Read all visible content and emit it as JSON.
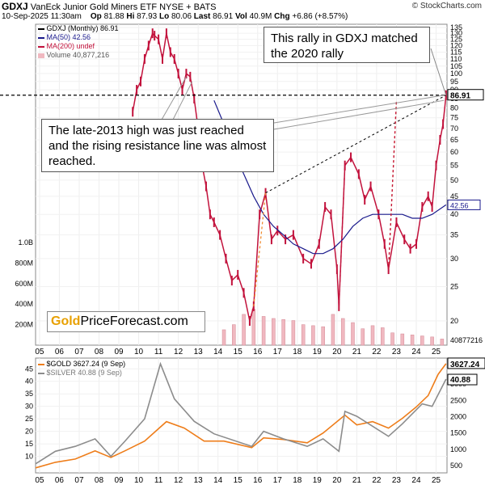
{
  "header": {
    "ticker": "GDXJ",
    "name": "VanEck Junior Gold Miners ETF",
    "exchange": "NYSE + BATS",
    "date": "10-Sep-2025 11:30am",
    "op_label": "Op",
    "op": "81.88",
    "hi_label": "Hi",
    "hi": "87.93",
    "lo_label": "Lo",
    "lo": "80.06",
    "last_label": "Last",
    "last": "86.91",
    "vol_label": "Vol",
    "vol": "40.9M",
    "chg_label": "Chg",
    "chg": "+6.86 (+8.57%)",
    "brand": "© StockCharts.com"
  },
  "legend_top": {
    "main": "GDXJ (Monthly) 86.91",
    "ma50": "MA(50) 42.56",
    "ma200": "MA(200) undef",
    "volume": "Volume 40,877,216"
  },
  "legend_bottom": {
    "gold": "$GOLD 3627.24 (9 Sep)",
    "silver": "$SILVER 40.88 (9 Sep)"
  },
  "annotations": {
    "top": "This rally in GDXJ matched the 2020 rally",
    "mid": "The late-2013 high was just reached and the rising resistance line was almost reached."
  },
  "logo": {
    "gold": "Gold",
    "rest": "PriceForecast.com"
  },
  "colors": {
    "price": "#c2123c",
    "ma50": "#1a1a8c",
    "volume": "#f0b8c0",
    "gold": "#ee7d1a",
    "silver": "#8c8c8c",
    "dashed": "#000000",
    "orange_dash": "#f08a30"
  },
  "chart_data": [
    {
      "type": "line",
      "title": "GDXJ (Monthly)",
      "x_range": [
        2005,
        2025.75
      ],
      "y_scale": "log",
      "ylim": [
        15,
        135
      ],
      "right_ticks": [
        "135",
        "130",
        "125",
        "120",
        "115",
        "110",
        "105",
        "100",
        "95",
        "90",
        "85",
        "80",
        "75",
        "70",
        "65",
        "60",
        "55",
        "50",
        "45",
        "40",
        "35",
        "30",
        "25",
        "20"
      ],
      "left_volume_ticks": [
        "1.0B",
        "800M",
        "600M",
        "400M",
        "200M"
      ],
      "x_tick_labels": [
        "05",
        "06",
        "07",
        "08",
        "09",
        "10",
        "11",
        "12",
        "13",
        "14",
        "15",
        "16",
        "17",
        "18",
        "19",
        "20",
        "21",
        "22",
        "23",
        "24",
        "25"
      ],
      "last_value_label": "86.91",
      "ma50_label": "42.56",
      "volume_value_label": "40877216",
      "price_series": {
        "name": "GDXJ",
        "x": [
          2009.9,
          2010.1,
          2010.3,
          2010.5,
          2010.7,
          2010.9,
          2011.0,
          2011.2,
          2011.4,
          2011.6,
          2011.8,
          2012.0,
          2012.2,
          2012.4,
          2012.6,
          2012.8,
          2013.0,
          2013.2,
          2013.4,
          2013.6,
          2013.8,
          2014.0,
          2014.3,
          2014.6,
          2014.9,
          2015.2,
          2015.5,
          2015.8,
          2016.0,
          2016.3,
          2016.6,
          2016.9,
          2017.2,
          2017.6,
          2018.0,
          2018.5,
          2018.9,
          2019.3,
          2019.6,
          2019.9,
          2020.2,
          2020.3,
          2020.6,
          2020.9,
          2021.3,
          2021.6,
          2021.9,
          2022.3,
          2022.6,
          2022.8,
          2023.2,
          2023.6,
          2023.9,
          2024.2,
          2024.5,
          2024.8,
          2025.0,
          2025.2,
          2025.4,
          2025.55,
          2025.7
        ],
        "values": [
          78,
          90,
          95,
          110,
          120,
          130,
          128,
          125,
          110,
          130,
          115,
          110,
          100,
          90,
          100,
          98,
          85,
          70,
          55,
          48,
          40,
          38,
          35,
          30,
          26,
          27,
          24,
          20,
          22,
          40,
          46,
          34,
          36,
          34,
          35,
          30,
          29,
          33,
          42,
          40,
          28,
          22,
          55,
          58,
          52,
          44,
          48,
          40,
          33,
          28,
          38,
          34,
          32,
          33,
          42,
          45,
          42,
          55,
          65,
          72,
          86.91
        ]
      },
      "ma50_series": {
        "name": "MA(50)",
        "x": [
          2014.0,
          2014.5,
          2015.0,
          2015.5,
          2016.0,
          2016.5,
          2017.0,
          2017.5,
          2018.0,
          2018.5,
          2019.0,
          2019.5,
          2020.0,
          2020.5,
          2021.0,
          2021.5,
          2022.0,
          2022.5,
          2023.0,
          2023.5,
          2024.0,
          2024.5,
          2025.0,
          2025.7
        ],
        "values": [
          84,
          72,
          60,
          52,
          45,
          40,
          37,
          35,
          33,
          32,
          31,
          31,
          32,
          34,
          37,
          39,
          40,
          40,
          40,
          40,
          39,
          39,
          40,
          42.56
        ]
      },
      "volume_series": {
        "name": "Volume",
        "x": [
          2014.5,
          2015.0,
          2015.5,
          2016.0,
          2016.5,
          2017.0,
          2017.5,
          2018.0,
          2018.5,
          2019.0,
          2019.5,
          2020.0,
          2020.5,
          2021.0,
          2021.5,
          2022.0,
          2022.5,
          2023.0,
          2023.5,
          2024.0,
          2024.5,
          2025.0,
          2025.5
        ],
        "values": [
          150,
          200,
          300,
          350,
          280,
          260,
          250,
          240,
          200,
          190,
          180,
          300,
          260,
          220,
          160,
          190,
          170,
          120,
          110,
          100,
          90,
          80,
          60
        ],
        "unit": "M"
      },
      "annotation_lines": [
        {
          "kind": "horizontal-dashed",
          "y": 86.91
        },
        {
          "kind": "rising-dashed",
          "from": [
            2016.6,
            46
          ],
          "to": [
            2025.7,
            86.91
          ]
        },
        {
          "kind": "orange-dashed",
          "from": [
            2016.0,
            22
          ],
          "to": [
            2016.6,
            46
          ]
        },
        {
          "kind": "orange-dashed",
          "from": [
            2022.8,
            28
          ],
          "to": [
            2023.2,
            84
          ]
        },
        {
          "kind": "red-dashed",
          "from": [
            2020.3,
            22
          ],
          "to": [
            2020.6,
            55
          ]
        },
        {
          "kind": "red-dashed",
          "from": [
            2022.8,
            28
          ],
          "to": [
            2023.2,
            84
          ]
        }
      ]
    },
    {
      "type": "line",
      "title": "",
      "x_range": [
        2005,
        2025.75
      ],
      "left_ticks": [
        "45",
        "40",
        "35",
        "30",
        "25",
        "20",
        "15",
        "10"
      ],
      "right_ticks": [
        "3000",
        "2500",
        "2000",
        "1500",
        "1000",
        "500"
      ],
      "right_value_labels": [
        "3627.24",
        "40.88"
      ],
      "series": [
        {
          "name": "$GOLD",
          "axis": "right",
          "x": [
            2005,
            2006,
            2007,
            2008,
            2008.8,
            2009.5,
            2010.5,
            2011.6,
            2012.5,
            2013.5,
            2014.5,
            2015.9,
            2016.5,
            2017.5,
            2018.7,
            2019.5,
            2020.6,
            2021.2,
            2022.0,
            2022.8,
            2023.5,
            2024.2,
            2024.8,
            2025.3,
            2025.7
          ],
          "values": [
            430,
            600,
            700,
            950,
            750,
            950,
            1250,
            1850,
            1650,
            1250,
            1250,
            1050,
            1350,
            1300,
            1200,
            1500,
            2050,
            1750,
            1850,
            1650,
            1950,
            2300,
            2650,
            3300,
            3627.24
          ]
        },
        {
          "name": "$SILVER",
          "axis": "left",
          "x": [
            2005,
            2006,
            2007,
            2008,
            2008.8,
            2009.5,
            2010.5,
            2011.3,
            2012.0,
            2013.0,
            2014.0,
            2015.9,
            2016.5,
            2017.5,
            2018.7,
            2019.5,
            2020.3,
            2020.6,
            2021.2,
            2022.8,
            2023.5,
            2024.5,
            2025.0,
            2025.7
          ],
          "values": [
            7,
            12,
            14,
            17,
            10,
            16,
            25,
            47,
            33,
            24,
            19,
            14,
            20,
            17,
            14,
            17,
            12,
            28,
            26,
            18,
            23,
            31,
            30,
            40.88
          ]
        }
      ]
    }
  ]
}
